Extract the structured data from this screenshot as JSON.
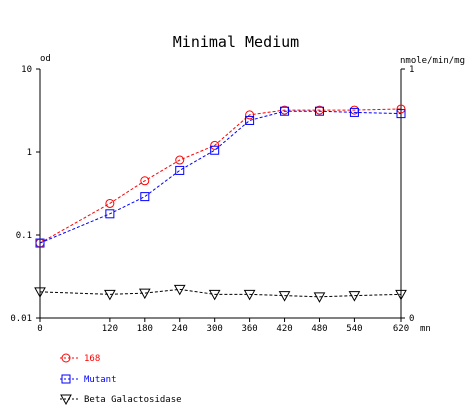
{
  "chart_data": {
    "type": "line",
    "title": "Minimal Medium",
    "xlabel": "mn",
    "ylabel_left": "od",
    "ylabel_right": "nmole/min/mg",
    "x_ticks": [
      0,
      120,
      180,
      240,
      300,
      360,
      420,
      480,
      540,
      620
    ],
    "x_range": [
      0,
      620
    ],
    "y_left": {
      "scale": "log",
      "range": [
        0.01,
        10
      ],
      "ticks": [
        "10",
        "1",
        "0.1",
        "0.01"
      ]
    },
    "y_right": {
      "scale": "linear",
      "range": [
        0,
        1
      ],
      "ticks": [
        "1",
        "0"
      ]
    },
    "grid": false,
    "legend_position": "bottom-left",
    "series": [
      {
        "name": "168",
        "axis": "left",
        "marker": "circle",
        "color": "#ff0000",
        "x": [
          0,
          120,
          180,
          240,
          300,
          360,
          420,
          480,
          540,
          620
        ],
        "y": [
          0.08,
          0.24,
          0.45,
          0.8,
          1.2,
          2.8,
          3.2,
          3.2,
          3.2,
          3.3
        ]
      },
      {
        "name": "Mutant",
        "axis": "left",
        "marker": "square",
        "color": "#0000ff",
        "x": [
          0,
          120,
          180,
          240,
          300,
          360,
          420,
          480,
          540,
          620
        ],
        "y": [
          0.08,
          0.18,
          0.29,
          0.6,
          1.05,
          2.4,
          3.1,
          3.1,
          3.0,
          2.9
        ]
      },
      {
        "name": "Beta Galactosidase",
        "axis": "right",
        "marker": "triangle-down",
        "color": "#000000",
        "x": [
          0,
          120,
          180,
          240,
          300,
          360,
          420,
          480,
          540,
          620
        ],
        "y": [
          0.105,
          0.095,
          0.1,
          0.115,
          0.095,
          0.095,
          0.09,
          0.085,
          0.09,
          0.095
        ]
      }
    ]
  }
}
